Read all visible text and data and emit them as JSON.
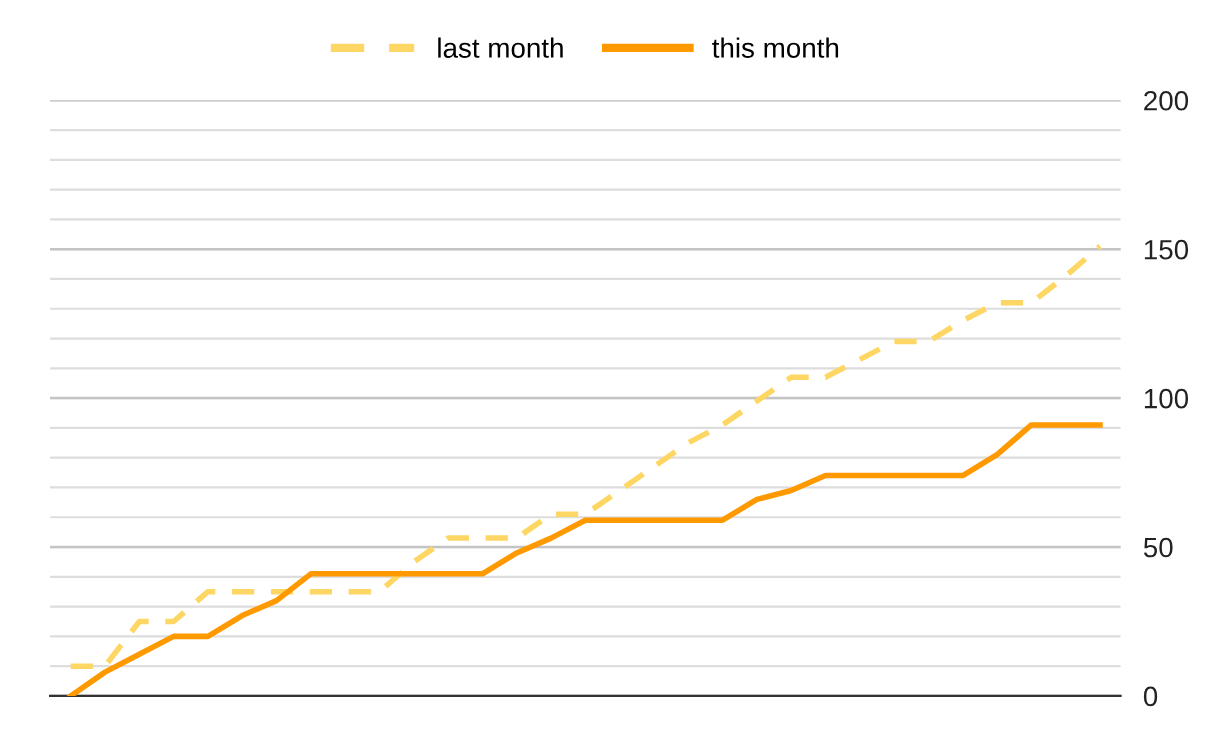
{
  "chart_data": {
    "type": "line",
    "categories": [
      null,
      null,
      null,
      null,
      null,
      null,
      null,
      null,
      null,
      null,
      null,
      null,
      null,
      null,
      null,
      null,
      null,
      null,
      null,
      null,
      null,
      null,
      null,
      null,
      null,
      null,
      null,
      null,
      null,
      null,
      null
    ],
    "series": [
      {
        "name": "last month",
        "color": "#fdd663",
        "line_style": "dashed",
        "values": [
          10,
          10,
          25,
          25,
          35,
          35,
          35,
          35,
          35,
          35,
          45,
          53,
          53,
          53,
          61,
          61,
          69,
          77,
          85,
          91,
          99,
          107,
          107,
          113,
          119,
          119,
          126,
          132,
          132,
          141,
          151
        ]
      },
      {
        "name": "this month",
        "color": "#ff9900",
        "line_style": "solid",
        "values": [
          0,
          8,
          14,
          20,
          20,
          27,
          32,
          41,
          41,
          41,
          41,
          41,
          41,
          48,
          53,
          59,
          59,
          59,
          59,
          59,
          66,
          69,
          74,
          74,
          74,
          74,
          74,
          81,
          91,
          91,
          91
        ]
      }
    ],
    "ylim": [
      0,
      200
    ],
    "yticks": [
      0,
      {
        "value": 10,
        "label": null
      },
      {
        "value": 20,
        "label": null
      },
      {
        "value": 30,
        "label": null
      },
      {
        "value": 40,
        "label": null
      },
      50,
      {
        "value": 60,
        "label": null
      },
      {
        "value": 70,
        "label": null
      },
      {
        "value": 80,
        "label": null
      },
      {
        "value": 90,
        "label": null
      },
      100,
      {
        "value": 110,
        "label": null
      },
      {
        "value": 120,
        "label": null
      },
      {
        "value": 130,
        "label": null
      },
      {
        "value": 140,
        "label": null
      },
      150,
      {
        "value": 160,
        "label": null
      },
      {
        "value": 170,
        "label": null
      },
      {
        "value": 180,
        "label": null
      },
      {
        "value": 190,
        "label": null
      },
      200
    ],
    "grid": "y",
    "legend": "top",
    "marker": "none"
  }
}
